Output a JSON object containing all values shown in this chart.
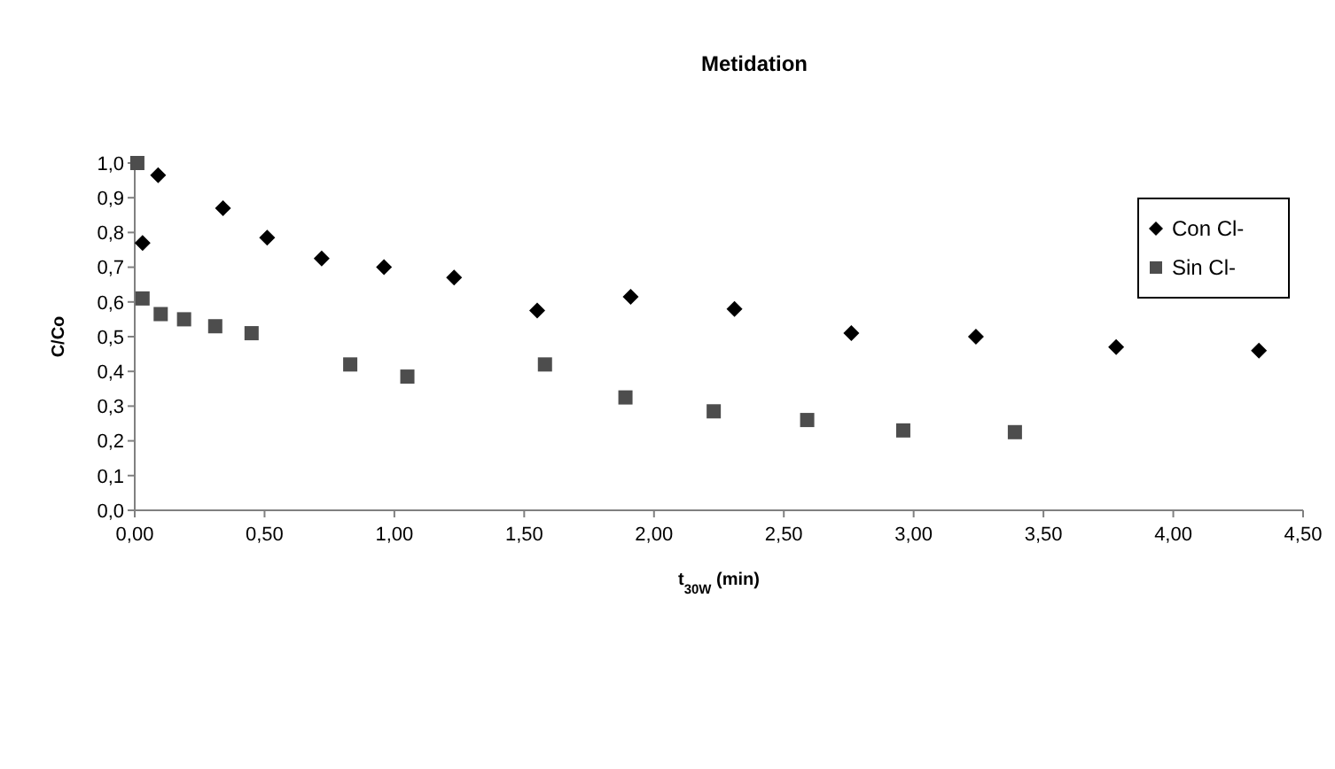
{
  "chart_data": {
    "type": "scatter",
    "title": "Metidation",
    "xlabel": "t$_{30W}$ (min)",
    "ylabel": "C/Co",
    "legend": "right",
    "grid": false,
    "xlim": [
      0,
      4.5
    ],
    "xticks": [
      {
        "value": 0,
        "label": "0,00"
      },
      {
        "value": 0.5,
        "label": "0,50"
      },
      {
        "value": 1,
        "label": "1,00"
      },
      {
        "value": 1.5,
        "label": "1,50"
      },
      {
        "value": 2,
        "label": "2,00"
      },
      {
        "value": 2.5,
        "label": "2,50"
      },
      {
        "value": 3,
        "label": "3,00"
      },
      {
        "value": 3.5,
        "label": "3,50"
      },
      {
        "value": 4,
        "label": "4,00"
      },
      {
        "value": 4.5,
        "label": "4,50"
      }
    ],
    "ylim": [
      0,
      1
    ],
    "yticks": [
      {
        "value": 0,
        "label": "0,0"
      },
      {
        "value": 0.1,
        "label": "0,1"
      },
      {
        "value": 0.2,
        "label": "0,2"
      },
      {
        "value": 0.3,
        "label": "0,3"
      },
      {
        "value": 0.4,
        "label": "0,4"
      },
      {
        "value": 0.5,
        "label": "0,5"
      },
      {
        "value": 0.6,
        "label": "0,6"
      },
      {
        "value": 0.7,
        "label": "0,7"
      },
      {
        "value": 0.8,
        "label": "0,8"
      },
      {
        "value": 0.9,
        "label": "0,9"
      },
      {
        "value": 1,
        "label": "1,0"
      }
    ],
    "series": [
      {
        "name": "Con Cl-",
        "color": "#000000",
        "marker": "diamond",
        "x": [
          0.03,
          0.09,
          0.34,
          0.51,
          0.72,
          0.96,
          1.23,
          1.55,
          1.91,
          2.31,
          2.76,
          3.24,
          3.78,
          4.33
        ],
        "values": [
          0.77,
          0.965,
          0.87,
          0.785,
          0.725,
          0.7,
          0.67,
          0.575,
          0.615,
          0.58,
          0.51,
          0.5,
          0.47,
          0.46
        ]
      },
      {
        "name": "Sin Cl-",
        "color": "#4d4d4d",
        "marker": "square",
        "x": [
          0.01,
          0.03,
          0.1,
          0.19,
          0.31,
          0.45,
          0.83,
          1.05,
          1.58,
          1.89,
          2.23,
          2.59,
          2.96,
          3.39
        ],
        "values": [
          1.0,
          0.61,
          0.565,
          0.55,
          0.53,
          0.51,
          0.42,
          0.385,
          0.42,
          0.325,
          0.285,
          0.26,
          0.23,
          0.225
        ]
      }
    ]
  }
}
